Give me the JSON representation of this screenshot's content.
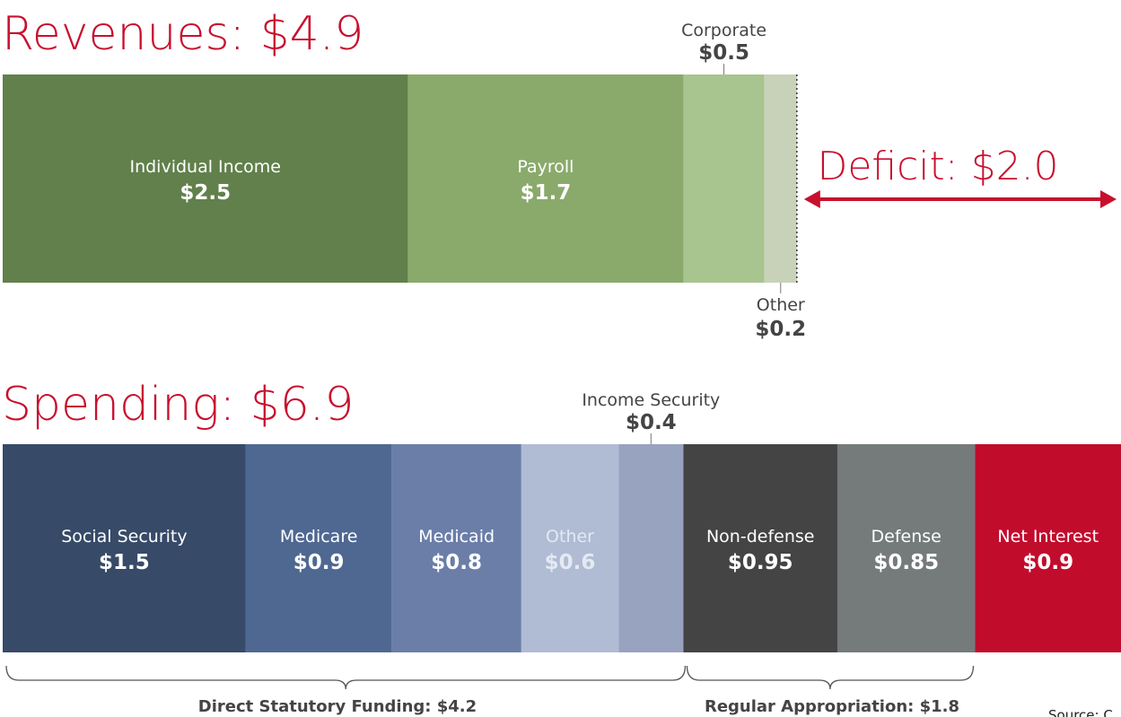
{
  "chart_data": [
    {
      "type": "stacked-bar",
      "title": "Revenues: $4.9",
      "xlim": [
        0,
        6.9
      ],
      "categories": [
        "Individual Income",
        "Payroll",
        "Corporate",
        "Other"
      ],
      "values": [
        2.5,
        1.7,
        0.5,
        0.2
      ],
      "value_labels": [
        "$2.5",
        "$1.7",
        "$0.5",
        "$0.2"
      ],
      "colors": [
        "#61804b",
        "#8aaa6b",
        "#a8c48f",
        "#c8d2b8"
      ]
    },
    {
      "type": "stacked-bar",
      "title": "Spending: $6.9",
      "xlim": [
        0,
        6.9
      ],
      "categories": [
        "Social Security",
        "Medicare",
        "Medicaid",
        "Other",
        "Income Security",
        "Non-defense",
        "Defense",
        "Net Interest"
      ],
      "values": [
        1.5,
        0.9,
        0.8,
        0.6,
        0.4,
        0.95,
        0.85,
        0.9
      ],
      "value_labels": [
        "$1.5",
        "$0.9",
        "$0.8",
        "$0.6",
        "$0.4",
        "$0.95",
        "$0.85",
        "$0.9"
      ],
      "colors": [
        "#374a68",
        "#4f6891",
        "#6a7ea8",
        "#b0bcd4",
        "#97a3bf",
        "#444444",
        "#757a7a",
        "#c20c2c"
      ]
    }
  ],
  "annotations": {
    "deficit": "Deficit: $2.0",
    "groups": [
      "Direct Statutory Funding: $4.2",
      "Regular Appropriation: $1.8"
    ],
    "source": "Source: C"
  }
}
